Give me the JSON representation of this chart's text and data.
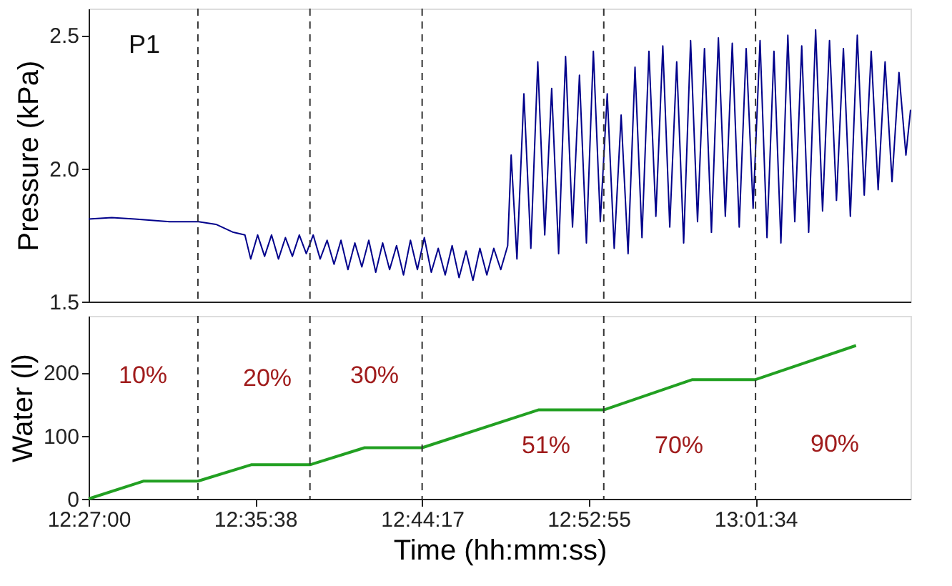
{
  "chart_data": [
    {
      "type": "line",
      "ylabel": "Pressure (kPa)",
      "annotations": [
        "P1"
      ],
      "xlim": [
        12.45,
        13.16
      ],
      "ylim": [
        1.5,
        2.6
      ],
      "yticks": [
        {
          "value": 1.5,
          "label": "1.5"
        },
        {
          "value": 2.0,
          "label": "2.0"
        },
        {
          "value": 2.5,
          "label": "2.5"
        }
      ],
      "tick_labels": "y",
      "grid": false,
      "marker": "none",
      "line_style": "solid",
      "ref_lines": [
        {
          "axis": "x",
          "value": 12.5444,
          "line_style": "dashed",
          "color": "#333333"
        },
        {
          "axis": "x",
          "value": 12.6412,
          "line_style": "dashed",
          "color": "#333333"
        },
        {
          "axis": "x",
          "value": 12.7381,
          "line_style": "dashed",
          "color": "#333333"
        },
        {
          "axis": "x",
          "value": 12.895,
          "line_style": "dashed",
          "color": "#333333"
        },
        {
          "axis": "x",
          "value": 13.0261,
          "line_style": "dashed",
          "color": "#333333"
        }
      ],
      "series": [
        {
          "color": "#00008b",
          "x": [
            12.45,
            12.47,
            12.49,
            12.52,
            12.545,
            12.56,
            12.575,
            12.585,
            12.59,
            12.596,
            12.602,
            12.608,
            12.614,
            12.62,
            12.626,
            12.632,
            12.638,
            12.644,
            12.65,
            12.656,
            12.662,
            12.668,
            12.674,
            12.68,
            12.686,
            12.692,
            12.698,
            12.704,
            12.71,
            12.716,
            12.722,
            12.728,
            12.734,
            12.74,
            12.746,
            12.752,
            12.758,
            12.764,
            12.77,
            12.776,
            12.782,
            12.788,
            12.794,
            12.8,
            12.806,
            12.812,
            12.815,
            12.82,
            12.826,
            12.832,
            12.838,
            12.844,
            12.85,
            12.856,
            12.862,
            12.868,
            12.874,
            12.88,
            12.886,
            12.892,
            12.898,
            12.904,
            12.91,
            12.916,
            12.922,
            12.928,
            12.934,
            12.94,
            12.946,
            12.952,
            12.958,
            12.964,
            12.97,
            12.976,
            12.982,
            12.988,
            12.994,
            13.0,
            13.006,
            13.012,
            13.018,
            13.024,
            13.03,
            13.036,
            13.042,
            13.048,
            13.054,
            13.06,
            13.066,
            13.072,
            13.078,
            13.084,
            13.09,
            13.096,
            13.102,
            13.108,
            13.114,
            13.12,
            13.126,
            13.132,
            13.138,
            13.144,
            13.15,
            13.156,
            13.16
          ],
          "values": [
            1.81,
            1.815,
            1.81,
            1.8,
            1.8,
            1.79,
            1.76,
            1.75,
            1.66,
            1.75,
            1.67,
            1.75,
            1.66,
            1.74,
            1.67,
            1.75,
            1.68,
            1.75,
            1.66,
            1.73,
            1.64,
            1.73,
            1.62,
            1.72,
            1.63,
            1.73,
            1.61,
            1.72,
            1.62,
            1.71,
            1.6,
            1.73,
            1.62,
            1.74,
            1.61,
            1.7,
            1.6,
            1.71,
            1.59,
            1.69,
            1.58,
            1.7,
            1.6,
            1.7,
            1.62,
            1.71,
            2.05,
            1.66,
            2.28,
            1.7,
            2.4,
            1.75,
            2.3,
            1.68,
            2.42,
            1.78,
            2.35,
            1.72,
            2.44,
            1.8,
            2.28,
            1.7,
            2.2,
            1.68,
            2.38,
            1.74,
            2.44,
            1.82,
            2.46,
            1.78,
            2.4,
            1.72,
            2.48,
            1.8,
            2.45,
            1.76,
            2.49,
            1.82,
            2.47,
            1.78,
            2.45,
            1.85,
            2.48,
            1.74,
            2.44,
            1.72,
            2.5,
            1.8,
            2.46,
            1.76,
            2.52,
            1.84,
            2.48,
            1.88,
            2.45,
            1.82,
            2.5,
            1.9,
            2.44,
            1.92,
            2.4,
            1.95,
            2.36,
            2.05,
            2.22
          ]
        }
      ]
    },
    {
      "type": "line",
      "xlabel": "Time (hh:mm:ss)",
      "ylabel": "Water (l)",
      "xlim": [
        12.45,
        13.16
      ],
      "ylim": [
        0,
        290
      ],
      "xticks": [
        {
          "value": 12.45,
          "label": "12:27:00"
        },
        {
          "value": 12.5939,
          "label": "12:35:38"
        },
        {
          "value": 12.7381,
          "label": "12:44:17"
        },
        {
          "value": 12.8819,
          "label": "12:52:55"
        },
        {
          "value": 13.0261,
          "label": "13:01:34"
        }
      ],
      "yticks": [
        0,
        100,
        200
      ],
      "grid": false,
      "marker": "none",
      "line_style": "solid",
      "ref_lines": [
        {
          "axis": "x",
          "value": 12.5444,
          "line_style": "dashed",
          "color": "#333333"
        },
        {
          "axis": "x",
          "value": 12.6412,
          "line_style": "dashed",
          "color": "#333333"
        },
        {
          "axis": "x",
          "value": 12.7381,
          "line_style": "dashed",
          "color": "#333333"
        },
        {
          "axis": "x",
          "value": 12.895,
          "line_style": "dashed",
          "color": "#333333"
        },
        {
          "axis": "x",
          "value": 13.0261,
          "line_style": "dashed",
          "color": "#333333"
        }
      ],
      "annotations": [
        "10%",
        "20%",
        "30%",
        "51%",
        "70%",
        "90%"
      ],
      "series": [
        {
          "color": "#22a022",
          "x": [
            12.45,
            12.4972,
            12.5444,
            12.5904,
            12.6412,
            12.6884,
            12.7381,
            12.8385,
            12.895,
            12.9716,
            13.0261,
            13.1129
          ],
          "values": [
            0,
            28,
            28,
            54,
            54,
            81,
            81,
            141,
            141,
            189,
            189,
            243
          ]
        }
      ]
    }
  ]
}
